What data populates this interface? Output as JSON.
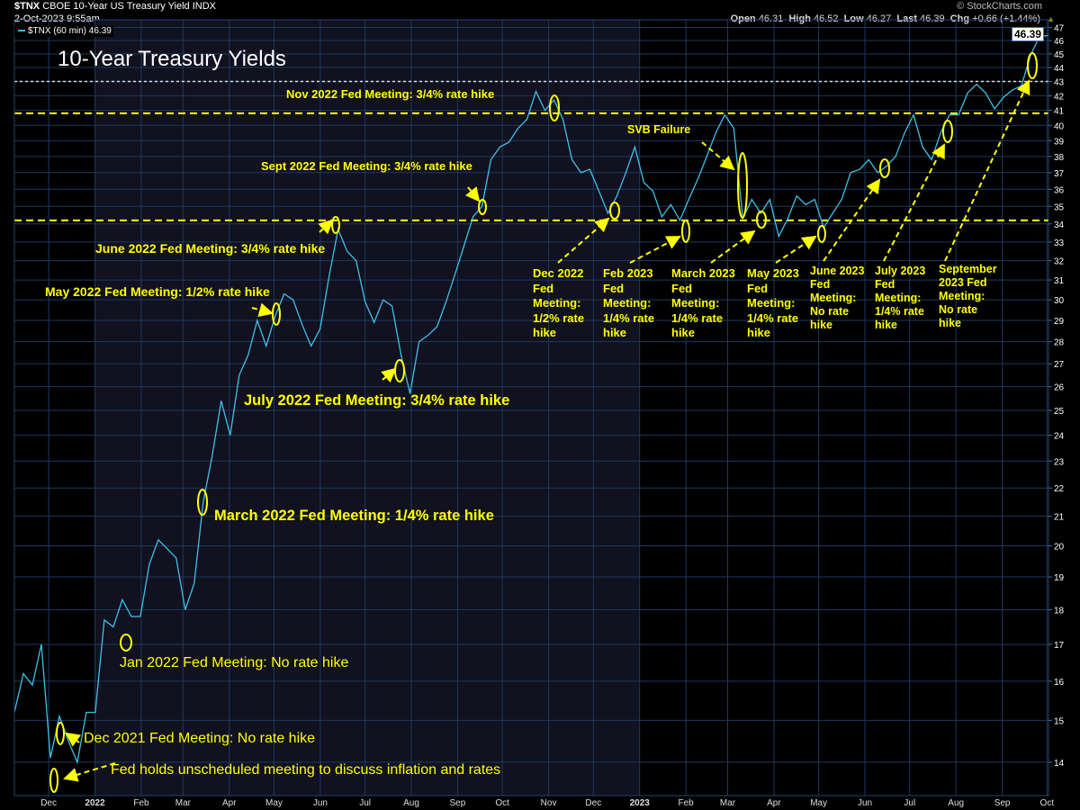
{
  "header": {
    "symbol": "$TNX",
    "name": "CBOE 10-Year US Treasury Yield",
    "exchange": "INDX",
    "datetime": "2-Oct-2023 9:55am",
    "watermark": "© StockCharts.com",
    "open_label": "Open",
    "open": "46.31",
    "high_label": "High",
    "high": "46.52",
    "low_label": "Low",
    "low": "46.27",
    "last_label": "Last",
    "last": "46.39",
    "chg_label": "Chg",
    "chg": "+0.66 (+1.44%)"
  },
  "legend": {
    "label": "$TNX (60 min) 46.39"
  },
  "price_tag": "46.39",
  "colors": {
    "line": "#3fc0ea",
    "annotation": "#ffff00",
    "grid": "#1d3a5e",
    "shade": "#11111f"
  },
  "chart_data": {
    "type": "line",
    "title": "10-Year Treasury Yields",
    "xlabel": "",
    "ylabel": "",
    "y_scale": "log",
    "ylim": [
      13.25,
      47.6
    ],
    "x_range": [
      "2021-11-08",
      "2023-10-02"
    ],
    "grid": true,
    "shaded_period": [
      "2022-01-01",
      "2023-01-01"
    ],
    "y_ticks": [
      14,
      15,
      16,
      17,
      18,
      19,
      20,
      21,
      22,
      23,
      24,
      25,
      26,
      27,
      28,
      29,
      30,
      31,
      32,
      33,
      34,
      35,
      36,
      37,
      38,
      39,
      40,
      41,
      42,
      43,
      44,
      45,
      46,
      47
    ],
    "x_ticks": [
      {
        "date": "2021-12-01",
        "label": "Dec"
      },
      {
        "date": "2022-01-01",
        "label": "2022",
        "bold": true
      },
      {
        "date": "2022-02-01",
        "label": "Feb"
      },
      {
        "date": "2022-03-01",
        "label": "Mar"
      },
      {
        "date": "2022-04-01",
        "label": "Apr"
      },
      {
        "date": "2022-05-01",
        "label": "May"
      },
      {
        "date": "2022-06-01",
        "label": "Jun"
      },
      {
        "date": "2022-07-01",
        "label": "Jul"
      },
      {
        "date": "2022-08-01",
        "label": "Aug"
      },
      {
        "date": "2022-09-01",
        "label": "Sep"
      },
      {
        "date": "2022-10-01",
        "label": "Oct"
      },
      {
        "date": "2022-11-01",
        "label": "Nov"
      },
      {
        "date": "2022-12-01",
        "label": "Dec"
      },
      {
        "date": "2023-01-01",
        "label": "2023",
        "bold": true
      },
      {
        "date": "2023-02-01",
        "label": "Feb"
      },
      {
        "date": "2023-03-01",
        "label": "Mar"
      },
      {
        "date": "2023-04-01",
        "label": "Apr"
      },
      {
        "date": "2023-05-01",
        "label": "May"
      },
      {
        "date": "2023-06-01",
        "label": "Jun"
      },
      {
        "date": "2023-07-01",
        "label": "Jul"
      },
      {
        "date": "2023-08-01",
        "label": "Aug"
      },
      {
        "date": "2023-09-01",
        "label": "Sep"
      },
      {
        "date": "2023-10-01",
        "label": "Oct"
      }
    ],
    "series": [
      {
        "name": "$TNX (60 min)",
        "values": [
          15.2,
          16.2,
          15.9,
          17.0,
          14.1,
          15.1,
          14.5,
          14.0,
          15.2,
          15.2,
          17.7,
          17.5,
          18.3,
          17.8,
          17.8,
          19.4,
          20.2,
          19.9,
          19.6,
          18.0,
          18.8,
          21.5,
          23.2,
          25.4,
          24.0,
          26.5,
          27.4,
          29.0,
          27.8,
          29.2,
          30.3,
          30.0,
          28.8,
          27.8,
          28.6,
          31.2,
          33.7,
          32.5,
          32.0,
          29.9,
          28.9,
          30.0,
          29.7,
          27.4,
          25.7,
          28.0,
          28.3,
          28.7,
          29.9,
          31.3,
          32.8,
          34.4,
          35.0,
          37.8,
          38.6,
          38.9,
          39.8,
          40.4,
          42.3,
          41.0,
          41.7,
          40.4,
          37.8,
          37.0,
          37.2,
          35.9,
          34.6,
          35.6,
          37.0,
          38.6,
          36.4,
          35.9,
          34.4,
          35.1,
          34.2,
          35.4,
          36.6,
          38.0,
          39.5,
          40.7,
          39.8,
          34.3,
          35.4,
          34.6,
          35.4,
          33.3,
          34.3,
          35.6,
          35.1,
          35.4,
          33.8,
          34.6,
          35.4,
          37.0,
          37.2,
          37.8,
          37.0,
          37.4,
          38.0,
          39.5,
          40.7,
          38.6,
          37.8,
          39.5,
          40.7,
          40.7,
          42.2,
          42.8,
          42.2,
          41.1,
          41.9,
          42.4,
          42.7,
          44.9,
          46.3,
          46.39
        ]
      }
    ],
    "reference_lines": [
      {
        "value": 43.0,
        "style": "white-dotted"
      },
      {
        "value": 40.8,
        "style": "yellow-dashed"
      },
      {
        "value": 34.2,
        "style": "yellow-dashed"
      }
    ],
    "annotations": [
      "Fed holds unscheduled meeting to discuss inflation and rates",
      "Dec 2021 Fed Meeting: No rate hike",
      "Jan 2022 Fed Meeting: No rate hike",
      "March 2022 Fed Meeting: 1/4% rate hike",
      "May 2022 Fed Meeting: 1/2% rate hike",
      "June 2022 Fed Meeting: 3/4% rate hike",
      "July 2022 Fed Meeting: 3/4% rate hike",
      "Sept 2022 Fed Meeting: 3/4% rate hike",
      "Nov 2022 Fed Meeting: 3/4% rate hike",
      "Dec 2022\nFed\nMeeting:\n1/2% rate\nhike",
      "Feb 2023\nFed\nMeeting:\n1/4% rate\nhike",
      "SVB Failure",
      "March 2023\nFed\nMeeting:\n1/4% rate\nhike",
      "May 2023\nFed\nMeeting:\n1/4% rate\nhike",
      "June 2023\nFed\nMeeting:\nNo rate\nhike",
      "July 2023\nFed\nMeeting:\n1/4% rate\nhike",
      "September\n2023 Fed\nMeeting:\nNo rate\nhike"
    ]
  }
}
